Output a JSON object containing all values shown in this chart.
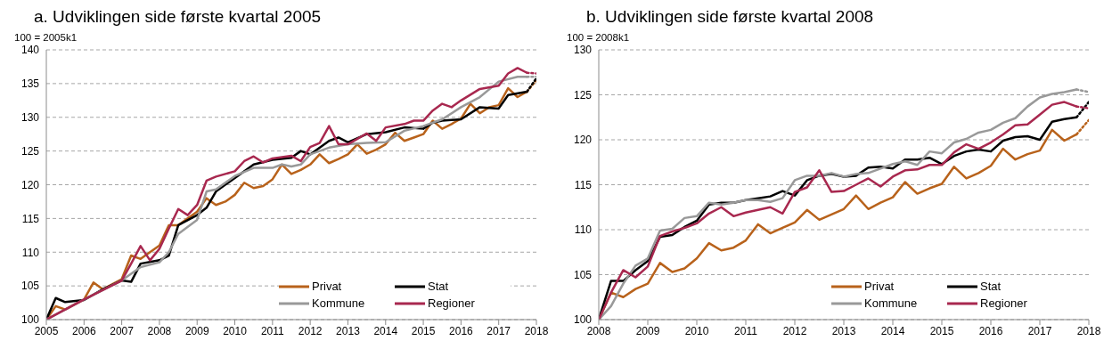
{
  "chart_data": [
    {
      "type": "line",
      "title": "a. Udviklingen side første kvartal 2005",
      "ylabel": "100 = 2005k1",
      "xlim": [
        2005,
        2018
      ],
      "xticks": [
        2005,
        2006,
        2007,
        2008,
        2009,
        2010,
        2011,
        2012,
        2013,
        2014,
        2015,
        2016,
        2017,
        2018
      ],
      "ylim": [
        100,
        140
      ],
      "yticks": [
        100,
        105,
        110,
        115,
        120,
        125,
        130,
        135,
        140
      ],
      "grid": "y",
      "legend": "bottom right",
      "marker": "none",
      "series": [
        {
          "name": "Privat",
          "color": "#b8621b",
          "x": [
            2005,
            2005.25,
            2005.5,
            2006,
            2006.25,
            2006.5,
            2007,
            2007.25,
            2007.5,
            2007.75,
            2008,
            2008.25,
            2008.5,
            2008.75,
            2009,
            2009.25,
            2009.5,
            2009.75,
            2010,
            2010.25,
            2010.5,
            2010.75,
            2011,
            2011.25,
            2011.5,
            2011.75,
            2012,
            2012.25,
            2012.5,
            2012.75,
            2013,
            2013.25,
            2013.5,
            2013.75,
            2014,
            2014.25,
            2014.5,
            2014.75,
            2015,
            2015.25,
            2015.5,
            2015.75,
            2016,
            2016.25,
            2016.5,
            2016.75,
            2017,
            2017.25,
            2017.5,
            2017.75
          ],
          "values": [
            100,
            102,
            101.5,
            103,
            105.5,
            104.5,
            106,
            109.5,
            109,
            110,
            111,
            114,
            114,
            115,
            116,
            118,
            117,
            117.5,
            118.5,
            120.3,
            119.5,
            119.8,
            120.8,
            123,
            121.6,
            122.2,
            123,
            124.5,
            123.2,
            123.8,
            124.5,
            126,
            124.6,
            125.2,
            126,
            127.7,
            126.5,
            127,
            127.5,
            129.5,
            128.3,
            129,
            129.8,
            132,
            130.6,
            131.5,
            131.8,
            134.3,
            133,
            133.8
          ]
        },
        {
          "name": "Stat",
          "color": "#000000",
          "x": [
            2005,
            2005.25,
            2005.5,
            2006,
            2006.5,
            2007,
            2007.25,
            2007.5,
            2008,
            2008.25,
            2008.5,
            2009,
            2009.25,
            2009.5,
            2010,
            2010.5,
            2011,
            2011.5,
            2011.75,
            2012,
            2012.5,
            2012.75,
            2013,
            2013.5,
            2014,
            2014.5,
            2015,
            2015.25,
            2015.5,
            2016,
            2016.5,
            2017,
            2017.25,
            2017.75
          ],
          "values": [
            100,
            103.2,
            102.6,
            102.9,
            104.5,
            105.8,
            105.6,
            108.3,
            108.8,
            109.5,
            114,
            115.5,
            116.6,
            119,
            121,
            123,
            123.7,
            124,
            125,
            124.5,
            126.5,
            127,
            126.3,
            127.5,
            127.8,
            128.5,
            128.3,
            129.2,
            129.5,
            129.7,
            131.5,
            131.3,
            133.3,
            133.8
          ]
        },
        {
          "name": "Kommune",
          "color": "#999999",
          "x": [
            2005,
            2006,
            2007,
            2007.5,
            2008,
            2008.25,
            2008.5,
            2009,
            2009.25,
            2009.5,
            2010,
            2010.5,
            2011,
            2011.25,
            2011.5,
            2011.75,
            2012,
            2012.5,
            2013,
            2013.5,
            2014,
            2014.5,
            2015,
            2015.5,
            2016,
            2016.5,
            2017,
            2017.5,
            2017.75
          ],
          "values": [
            100,
            103,
            105.8,
            107.8,
            108.5,
            110,
            112.7,
            114.8,
            119,
            119.3,
            121.3,
            122.5,
            122.5,
            123,
            122.7,
            123,
            124.5,
            125.5,
            126,
            126.2,
            126.3,
            128,
            128.7,
            129.7,
            131.5,
            133,
            135.3,
            136,
            136
          ]
        },
        {
          "name": "Regioner",
          "color": "#a8284f",
          "x": [
            2005,
            2006,
            2007,
            2007.25,
            2007.5,
            2007.75,
            2008,
            2008.25,
            2008.5,
            2008.75,
            2009,
            2009.25,
            2009.5,
            2010,
            2010.25,
            2010.5,
            2010.75,
            2011,
            2011.5,
            2011.75,
            2012,
            2012.25,
            2012.5,
            2012.75,
            2013,
            2013.5,
            2013.75,
            2014,
            2014.5,
            2014.75,
            2015,
            2015.25,
            2015.5,
            2015.75,
            2016,
            2016.5,
            2017,
            2017.25,
            2017.5,
            2017.75
          ],
          "values": [
            100,
            103,
            105.8,
            108.3,
            110.9,
            108.8,
            110.5,
            113.5,
            116.4,
            115.5,
            117,
            120.6,
            121.2,
            122,
            123.5,
            124.2,
            123.3,
            123.9,
            124.3,
            123.5,
            125.6,
            126.2,
            128.7,
            126,
            126,
            127.6,
            126.5,
            128.5,
            129,
            129.5,
            129.5,
            131,
            132,
            131.5,
            132.5,
            134.2,
            134.7,
            136.5,
            137.3,
            136.6
          ]
        },
        {
          "color": "#b8621b",
          "line_style": "dotted",
          "x": [
            2017.75,
            2018
          ],
          "values": [
            133.8,
            135.5
          ]
        },
        {
          "color": "#000000",
          "line_style": "dotted",
          "x": [
            2017.75,
            2018
          ],
          "values": [
            133.8,
            135.8
          ]
        },
        {
          "color": "#999999",
          "line_style": "dotted",
          "x": [
            2017.75,
            2018
          ],
          "values": [
            136,
            136
          ]
        },
        {
          "color": "#a8284f",
          "line_style": "dotted",
          "x": [
            2017.75,
            2018
          ],
          "values": [
            136.6,
            136.5
          ]
        }
      ]
    },
    {
      "type": "line",
      "title": "b. Udviklingen side første kvartal 2008",
      "ylabel": "100 = 2008k1",
      "xlim": [
        2008,
        2018
      ],
      "xticks": [
        2008,
        2009,
        2010,
        2011,
        2012,
        2013,
        2014,
        2015,
        2016,
        2017,
        2018
      ],
      "ylim": [
        100,
        130
      ],
      "yticks": [
        100,
        105,
        110,
        115,
        120,
        125,
        130
      ],
      "grid": "y",
      "legend": "bottom right",
      "marker": "none",
      "series": [
        {
          "name": "Privat",
          "color": "#b8621b",
          "x": [
            2008,
            2008.25,
            2008.5,
            2008.75,
            2009,
            2009.25,
            2009.5,
            2009.75,
            2010,
            2010.25,
            2010.5,
            2010.75,
            2011,
            2011.25,
            2011.5,
            2011.75,
            2012,
            2012.25,
            2012.5,
            2012.75,
            2013,
            2013.25,
            2013.5,
            2013.75,
            2014,
            2014.25,
            2014.5,
            2014.75,
            2015,
            2015.25,
            2015.5,
            2015.75,
            2016,
            2016.25,
            2016.5,
            2016.75,
            2017,
            2017.25,
            2017.5,
            2017.75
          ],
          "values": [
            100,
            103,
            102.5,
            103.4,
            104,
            106.3,
            105.3,
            105.7,
            106.8,
            108.5,
            107.7,
            108,
            108.8,
            110.6,
            109.6,
            110.2,
            110.8,
            112.2,
            111.1,
            111.7,
            112.3,
            113.8,
            112.3,
            113,
            113.6,
            115.3,
            114,
            114.6,
            115.1,
            117,
            115.7,
            116.3,
            117.1,
            119,
            117.8,
            118.4,
            118.8,
            121.1,
            119.9,
            120.6
          ]
        },
        {
          "name": "Stat",
          "color": "#000000",
          "x": [
            2008,
            2008.25,
            2008.5,
            2008.75,
            2009,
            2009.25,
            2009.5,
            2009.75,
            2010,
            2010.25,
            2010.5,
            2010.75,
            2011,
            2011.25,
            2011.5,
            2011.75,
            2012,
            2012.25,
            2012.5,
            2012.75,
            2013,
            2013.25,
            2013.5,
            2013.75,
            2014,
            2014.25,
            2014.5,
            2014.75,
            2015,
            2015.25,
            2015.5,
            2015.75,
            2016,
            2016.25,
            2016.5,
            2016.75,
            2017,
            2017.25,
            2017.5,
            2017.75
          ],
          "values": [
            100,
            104.3,
            104.3,
            105.5,
            106.5,
            109.2,
            109.4,
            110.3,
            111,
            112.8,
            113,
            113,
            113.3,
            113.5,
            113.7,
            114.3,
            113.8,
            115.5,
            116,
            116.2,
            115.9,
            116,
            116.9,
            117,
            116.8,
            117.8,
            117.8,
            118,
            117.3,
            118.2,
            118.7,
            118.9,
            118.7,
            119.9,
            120.3,
            120.4,
            120,
            122,
            122.3,
            122.5
          ]
        },
        {
          "name": "Kommune",
          "color": "#999999",
          "x": [
            2008,
            2008.25,
            2008.5,
            2008.75,
            2009,
            2009.25,
            2009.5,
            2009.75,
            2010,
            2010.25,
            2010.5,
            2010.75,
            2011,
            2011.25,
            2011.5,
            2011.75,
            2012,
            2012.25,
            2012.5,
            2012.75,
            2013,
            2013.25,
            2013.5,
            2013.75,
            2014,
            2014.25,
            2014.5,
            2014.75,
            2015,
            2015.25,
            2015.5,
            2015.75,
            2016,
            2016.25,
            2016.5,
            2016.75,
            2017,
            2017.25,
            2017.5,
            2017.75
          ],
          "values": [
            100,
            101.5,
            104,
            106,
            106.8,
            109.9,
            110.1,
            111.3,
            111.5,
            113,
            112.8,
            113,
            113.3,
            113.3,
            113.1,
            113.5,
            115.5,
            116,
            116,
            116.3,
            115.9,
            116.2,
            116.3,
            116.8,
            117.3,
            117.6,
            117.2,
            118.7,
            118.5,
            119.7,
            120.1,
            120.8,
            121.1,
            121.9,
            122.4,
            123.7,
            124.7,
            125.1,
            125.3,
            125.6
          ]
        },
        {
          "name": "Regioner",
          "color": "#a8284f",
          "x": [
            2008,
            2008.25,
            2008.5,
            2008.75,
            2009,
            2009.25,
            2009.5,
            2009.75,
            2010,
            2010.25,
            2010.5,
            2010.75,
            2011,
            2011.25,
            2011.5,
            2011.75,
            2012,
            2012.25,
            2012.5,
            2012.75,
            2013,
            2013.25,
            2013.5,
            2013.75,
            2014,
            2014.25,
            2014.5,
            2014.75,
            2015,
            2015.25,
            2015.5,
            2015.75,
            2016,
            2016.25,
            2016.5,
            2016.75,
            2017,
            2017.25,
            2017.5,
            2017.75
          ],
          "values": [
            100,
            103,
            105.5,
            104.7,
            105.9,
            109.3,
            109.8,
            110.2,
            110.7,
            111.8,
            112.5,
            111.5,
            111.9,
            112.2,
            112.5,
            111.8,
            114.2,
            114.7,
            116.6,
            114.2,
            114.3,
            115,
            115.7,
            114.8,
            115.9,
            116.6,
            116.7,
            117.2,
            117.2,
            118.6,
            119.5,
            119,
            119.7,
            120.6,
            121.6,
            121.7,
            122.8,
            123.9,
            124.2,
            123.7
          ]
        },
        {
          "color": "#b8621b",
          "line_style": "dotted",
          "x": [
            2017.75,
            2018
          ],
          "values": [
            120.6,
            122.2
          ]
        },
        {
          "color": "#000000",
          "line_style": "dotted",
          "x": [
            2017.75,
            2018
          ],
          "values": [
            122.5,
            124.2
          ]
        },
        {
          "color": "#999999",
          "line_style": "dotted",
          "x": [
            2017.75,
            2018
          ],
          "values": [
            125.6,
            125.3
          ]
        },
        {
          "color": "#a8284f",
          "line_style": "dotted",
          "x": [
            2017.75,
            2018
          ],
          "values": [
            123.7,
            123.5
          ]
        }
      ]
    }
  ]
}
